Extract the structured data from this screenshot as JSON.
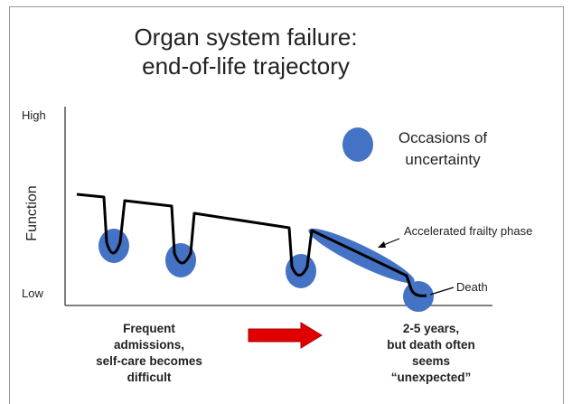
{
  "title": [
    "Organ system failure:",
    "end-of-life trajectory"
  ],
  "y_axis": {
    "label": "Function",
    "high": "High",
    "low": "Low"
  },
  "legend": {
    "lines": [
      "Occasions of",
      "uncertainty"
    ]
  },
  "annotations": {
    "accelerated": "Accelerated frailty phase",
    "death": "Death"
  },
  "footer": {
    "left": [
      "Frequent",
      "admissions,",
      "self-care becomes",
      "difficult"
    ],
    "right": [
      "2-5 years,",
      "but death often",
      "seems",
      "“unexpected”"
    ]
  }
}
